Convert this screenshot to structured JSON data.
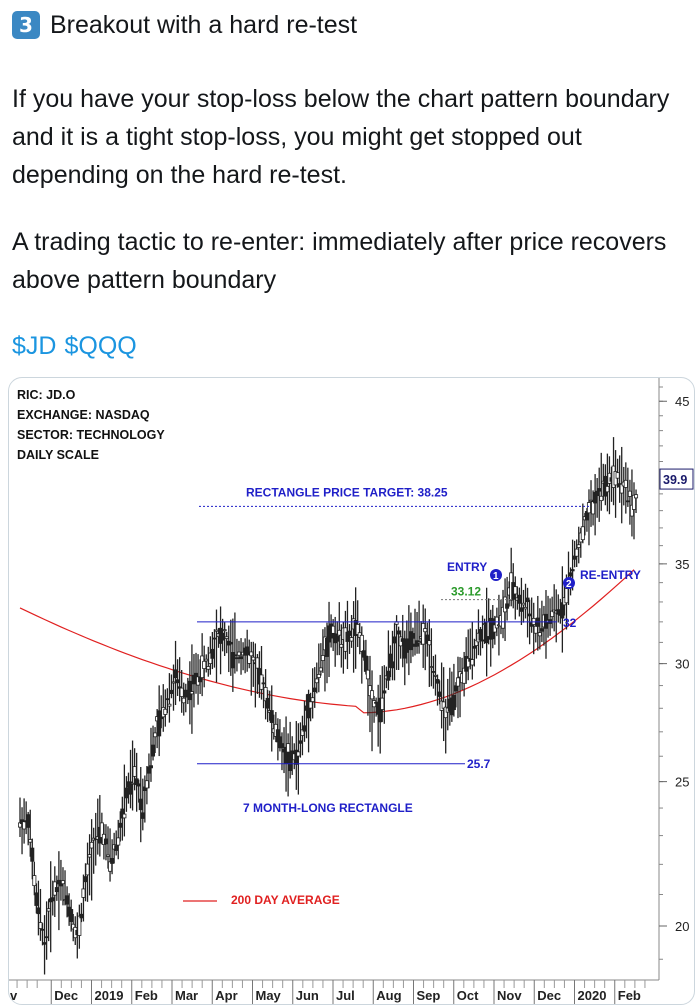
{
  "tweet": {
    "badge": "3",
    "title": "Breakout with a hard re-test",
    "paragraph1": "If you have your stop-loss below the chart pattern boundary and it is a tight stop-loss, you might get stopped out depending on the hard re-test.",
    "paragraph2": "A trading tactic to re-enter: immediately after price recovers above pattern boundary",
    "tags": [
      "$JD",
      "$QQQ"
    ]
  },
  "colors": {
    "accent": "#1b95e0",
    "annotation_blue": "#1f1fc8",
    "moving_average": "#e02020",
    "entry_green": "#2b9a2b"
  },
  "chart_data": {
    "type": "candlestick",
    "info": [
      "RIC: JD.O",
      "EXCHANGE: NASDAQ",
      "SECTOR: TECHNOLOGY",
      "DAILY SCALE"
    ],
    "scale": "log",
    "ylim": [
      18.4,
      46.5
    ],
    "y_ticks": [
      20,
      25,
      30,
      35,
      45
    ],
    "last_price": "39.9",
    "x_ticks": [
      "v",
      "Dec",
      "2019",
      "Feb",
      "Mar",
      "Apr",
      "May",
      "Jun",
      "Jul",
      "Aug",
      "Sep",
      "Oct",
      "Nov",
      "Dec",
      "2020",
      "Feb"
    ],
    "annotations": {
      "target_label": "RECTANGLE PRICE TARGET: 38.25",
      "target": 38.25,
      "upper_boundary": 32,
      "upper_label": "32",
      "lower_boundary": 25.7,
      "lower_label": "25.7",
      "entry_label": "ENTRY",
      "entry_marker": "1",
      "entry_price_label": "33.12",
      "entry_price": 33.12,
      "reentry_label": "RE-ENTRY",
      "reentry_marker": "2",
      "pattern_label": "7 MONTH-LONG RECTANGLE",
      "ma_label": "200 DAY AVERAGE"
    },
    "closes": [
      23.5,
      20.8,
      19.5,
      21.0,
      21.5,
      20.6,
      19.6,
      21.3,
      22.8,
      23.2,
      22.1,
      22.9,
      24.5,
      25.3,
      24.1,
      26.0,
      27.4,
      28.4,
      29.4,
      28.5,
      29.0,
      29.6,
      30.1,
      31.3,
      31.2,
      30.4,
      30.6,
      30.3,
      29.6,
      28.7,
      27.2,
      26.4,
      25.9,
      26.1,
      27.7,
      28.9,
      30.4,
      31.5,
      31.2,
      31.1,
      31.7,
      30.6,
      28.3,
      27.9,
      29.7,
      31.3,
      30.7,
      31.1,
      31.5,
      30.8,
      29.0,
      27.7,
      28.4,
      29.4,
      30.4,
      31.2,
      31.7,
      31.8,
      32.3,
      33.8,
      33.0,
      32.7,
      31.5,
      31.9,
      32.2,
      32.6,
      33.8,
      35.7,
      37.2,
      38.3,
      39.4,
      39.8,
      40.3,
      39.4,
      38.2,
      39.9
    ]
  }
}
